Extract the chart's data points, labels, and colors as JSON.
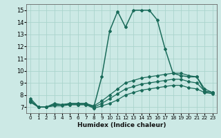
{
  "xlabel": "Humidex (Indice chaleur)",
  "xlim": [
    -0.5,
    23.5
  ],
  "ylim": [
    6.5,
    15.5
  ],
  "xticks": [
    0,
    1,
    2,
    3,
    4,
    5,
    6,
    7,
    8,
    9,
    10,
    11,
    12,
    13,
    14,
    15,
    16,
    17,
    18,
    19,
    20,
    21,
    22,
    23
  ],
  "yticks": [
    7,
    8,
    9,
    10,
    11,
    12,
    13,
    14,
    15
  ],
  "background_color": "#cce9e5",
  "line_color": "#1a6b5a",
  "grid_color": "#aad4cc",
  "curves": [
    {
      "x": [
        0,
        1,
        2,
        3,
        4,
        5,
        6,
        7,
        8,
        9,
        10,
        11,
        12,
        13,
        14,
        15,
        16,
        17,
        18,
        19,
        20,
        21,
        22,
        23
      ],
      "y": [
        7.7,
        7.0,
        7.0,
        7.3,
        7.2,
        7.3,
        7.3,
        7.3,
        7.0,
        9.5,
        13.3,
        14.9,
        13.6,
        15.0,
        15.0,
        15.0,
        14.2,
        11.8,
        9.8,
        9.6,
        9.5,
        9.5,
        8.3,
        8.2
      ]
    },
    {
      "x": [
        0,
        1,
        2,
        3,
        4,
        5,
        6,
        7,
        8,
        9,
        10,
        11,
        12,
        13,
        14,
        15,
        16,
        17,
        18,
        19,
        20,
        21,
        22,
        23
      ],
      "y": [
        7.5,
        7.0,
        7.0,
        7.2,
        7.2,
        7.3,
        7.3,
        7.3,
        7.1,
        7.5,
        8.0,
        8.5,
        9.0,
        9.2,
        9.4,
        9.5,
        9.6,
        9.7,
        9.8,
        9.8,
        9.6,
        9.5,
        8.5,
        8.2
      ]
    },
    {
      "x": [
        0,
        1,
        2,
        3,
        4,
        5,
        6,
        7,
        8,
        9,
        10,
        11,
        12,
        13,
        14,
        15,
        16,
        17,
        18,
        19,
        20,
        21,
        22,
        23
      ],
      "y": [
        7.5,
        7.0,
        7.0,
        7.2,
        7.2,
        7.2,
        7.2,
        7.2,
        7.0,
        7.3,
        7.7,
        8.1,
        8.5,
        8.7,
        8.9,
        9.0,
        9.1,
        9.2,
        9.3,
        9.3,
        9.1,
        9.0,
        8.3,
        8.2
      ]
    },
    {
      "x": [
        0,
        1,
        2,
        3,
        4,
        5,
        6,
        7,
        8,
        9,
        10,
        11,
        12,
        13,
        14,
        15,
        16,
        17,
        18,
        19,
        20,
        21,
        22,
        23
      ],
      "y": [
        7.4,
        7.0,
        7.0,
        7.1,
        7.1,
        7.2,
        7.2,
        7.2,
        6.9,
        7.1,
        7.3,
        7.6,
        8.0,
        8.2,
        8.4,
        8.5,
        8.6,
        8.7,
        8.8,
        8.8,
        8.6,
        8.5,
        8.2,
        8.1
      ]
    }
  ]
}
